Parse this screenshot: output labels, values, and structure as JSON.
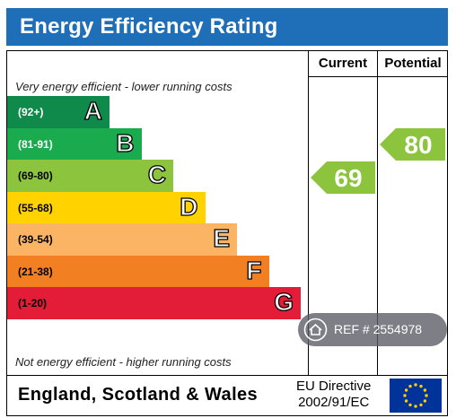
{
  "header": {
    "title": "Energy Efficiency Rating"
  },
  "columns": {
    "current": "Current",
    "potential": "Potential"
  },
  "notes": {
    "top": "Very energy efficient - lower running costs",
    "bottom": "Not energy efficient - higher running costs"
  },
  "chart_data": {
    "type": "bar",
    "title": "Energy Efficiency Rating",
    "categories": [
      "A",
      "B",
      "C",
      "D",
      "E",
      "F",
      "G"
    ],
    "ranges": [
      "(92+)",
      "(81-91)",
      "(69-80)",
      "(55-68)",
      "(39-54)",
      "(21-38)",
      "(1-20)"
    ],
    "colors": [
      "#0f8a4a",
      "#1bab4f",
      "#8cc43d",
      "#ffd200",
      "#fbb464",
      "#f37f23",
      "#e31d38"
    ],
    "current": {
      "value": 69,
      "band": "C",
      "color": "#8cc43d"
    },
    "potential": {
      "value": 80,
      "band": "C",
      "color": "#8cc43d"
    }
  },
  "footer": {
    "region": "England, Scotland & Wales",
    "directive_line1": "EU Directive",
    "directive_line2": "2002/91/EC"
  },
  "watermark": {
    "text": "REF # 2554978",
    "icon": "home-icon"
  }
}
